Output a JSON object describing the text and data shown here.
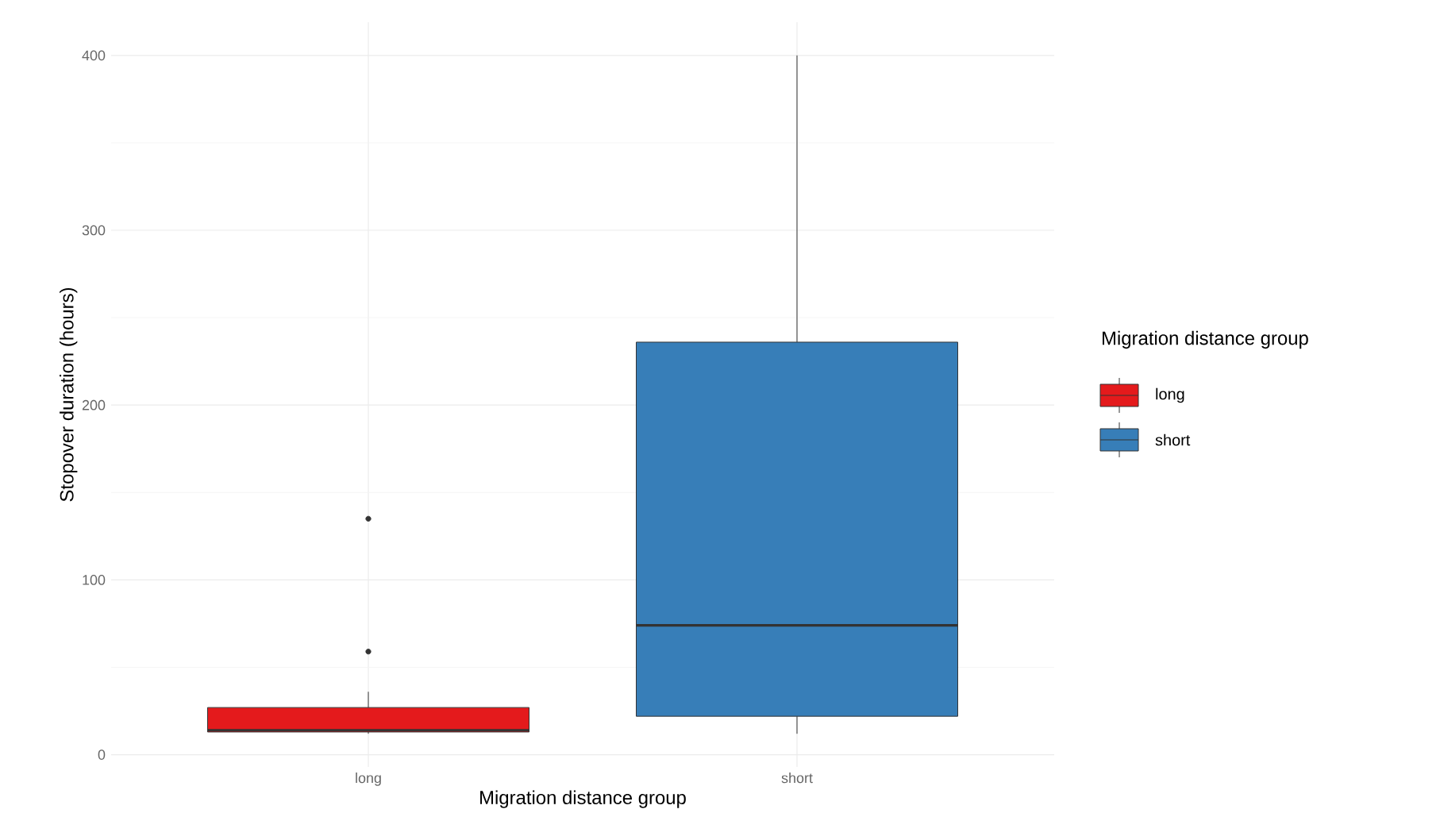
{
  "chart_data": {
    "type": "box",
    "xlabel": "Migration distance group",
    "ylabel": "Stopover duration (hours)",
    "legend_title": "Migration distance group",
    "categories": [
      "long",
      "short"
    ],
    "series": [
      {
        "name": "long",
        "color": "#e41a1c",
        "boxes": [
          {
            "low": 12,
            "q1": 13,
            "median": 14,
            "q3": 27,
            "high": 36,
            "outliers": [
              135,
              59
            ]
          },
          null
        ]
      },
      {
        "name": "short",
        "color": "#377eb8",
        "boxes": [
          null,
          {
            "low": 12,
            "q1": 22,
            "median": 74,
            "q3": 236,
            "high": 400
          }
        ]
      }
    ],
    "ylim": [
      -7,
      419
    ],
    "yticks": [
      0,
      100,
      200,
      300,
      400
    ],
    "grid": true,
    "legend": "right"
  }
}
